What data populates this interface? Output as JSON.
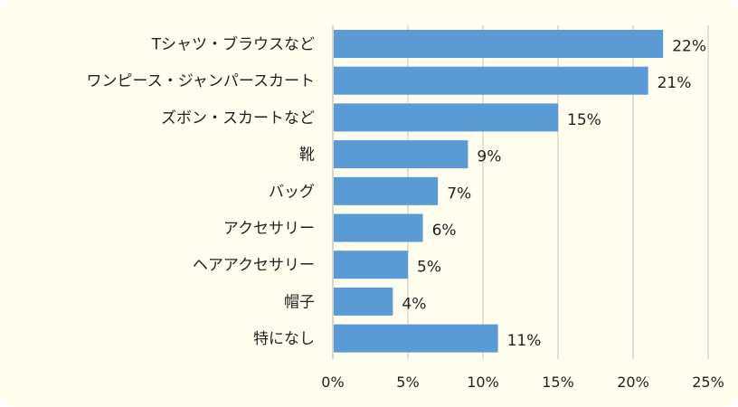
{
  "chart_data": {
    "type": "bar",
    "orientation": "horizontal",
    "categories": [
      "Tシャツ・ブラウスなど",
      "ワンピース・ジャンパースカート",
      "ズボン・スカートなど",
      "靴",
      "バッグ",
      "アクセサリー",
      "ヘアアクセサリー",
      "帽子",
      "特になし"
    ],
    "values": [
      22,
      21,
      15,
      9,
      7,
      6,
      5,
      4,
      11
    ],
    "value_labels": [
      "22%",
      "21%",
      "15%",
      "9%",
      "7%",
      "6%",
      "5%",
      "4%",
      "11%"
    ],
    "xlim": [
      0,
      25
    ],
    "x_ticks": [
      0,
      5,
      10,
      15,
      20,
      25
    ],
    "x_tick_labels": [
      "0%",
      "5%",
      "10%",
      "15%",
      "20%",
      "25%"
    ],
    "grid": true,
    "legend": "none",
    "colors": {
      "bar": "#5b9bd5",
      "grid": "#cfd1cc",
      "background": "#fefdee",
      "text": "#222222"
    }
  }
}
